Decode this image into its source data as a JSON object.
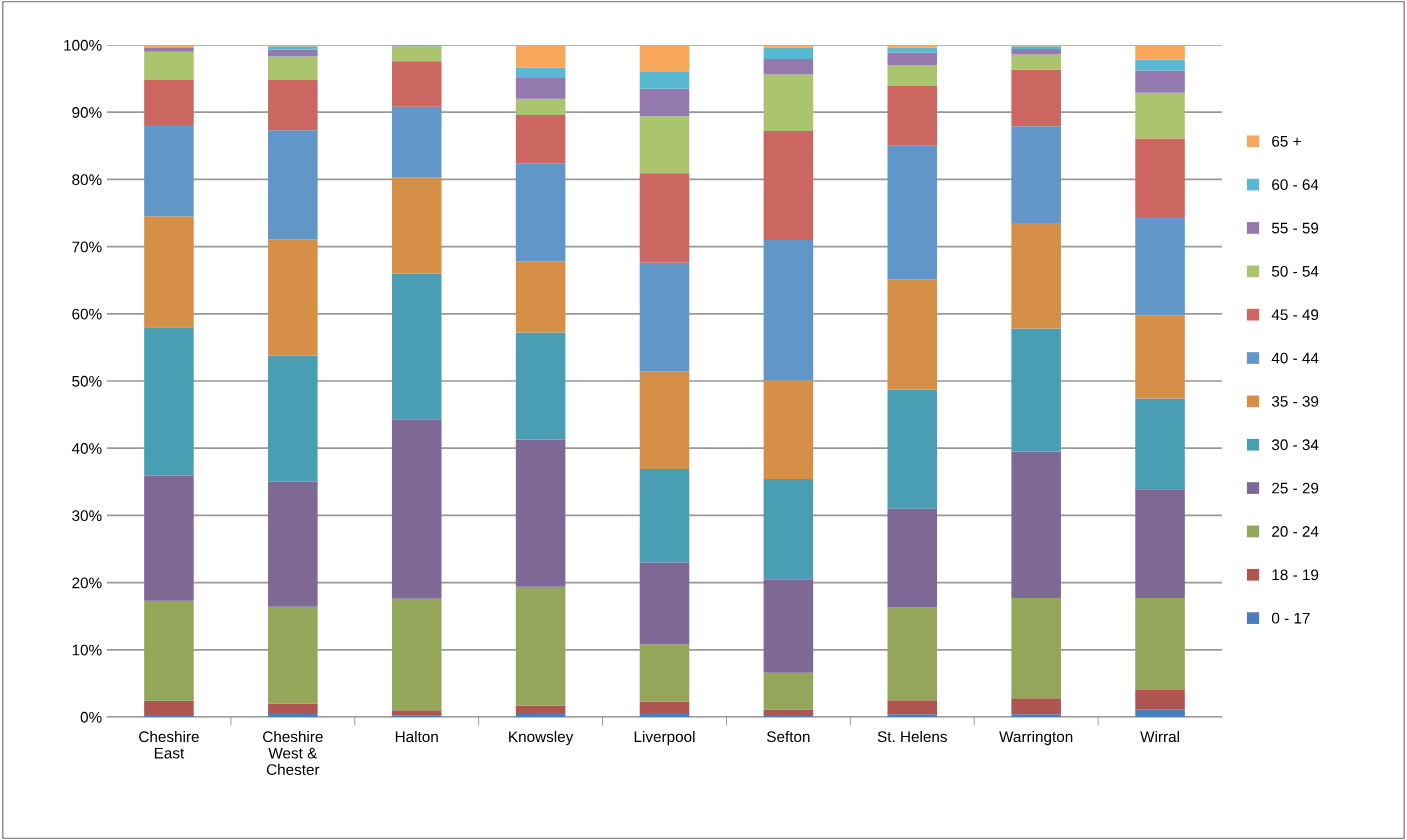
{
  "chart_data": {
    "type": "bar",
    "stacked": true,
    "categories": [
      "Cheshire\nEast",
      "Cheshire\nWest &\nChester",
      "Halton",
      "Knowsley",
      "Liverpool",
      "Sefton",
      "St. Helens",
      "Warrington",
      "Wirral"
    ],
    "ylim": [
      0,
      100
    ],
    "yticks": [
      {
        "value": 0,
        "label": "0%"
      },
      {
        "value": 10,
        "label": "10%"
      },
      {
        "value": 20,
        "label": "20%"
      },
      {
        "value": 30,
        "label": "30%"
      },
      {
        "value": 40,
        "label": "40%"
      },
      {
        "value": 50,
        "label": "50%"
      },
      {
        "value": 60,
        "label": "60%"
      },
      {
        "value": 70,
        "label": "70%"
      },
      {
        "value": 80,
        "label": "80%"
      },
      {
        "value": 90,
        "label": "90%"
      },
      {
        "value": 100,
        "label": "100%"
      }
    ],
    "grid": "y",
    "legend": "right",
    "series": [
      {
        "name": "0 - 17",
        "color": "#4a7ebb",
        "values": [
          0.3,
          0.6,
          0.2,
          0.6,
          0.6,
          0.3,
          0.4,
          0.4,
          1.1
        ]
      },
      {
        "name": "18 - 19",
        "color": "#ae5550",
        "values": [
          2.1,
          1.4,
          0.8,
          1.1,
          1.7,
          0.8,
          2.1,
          2.4,
          2.9
        ]
      },
      {
        "name": "20 - 24",
        "color": "#93a65a",
        "values": [
          14.9,
          14.4,
          16.6,
          17.7,
          8.5,
          5.5,
          13.8,
          14.9,
          13.7
        ]
      },
      {
        "name": "25 - 29",
        "color": "#7e6896",
        "values": [
          18.6,
          18.6,
          26.7,
          21.9,
          12.2,
          13.9,
          14.7,
          21.8,
          16.2
        ]
      },
      {
        "name": "30 - 34",
        "color": "#4a9eb4",
        "values": [
          22.1,
          18.8,
          21.7,
          15.9,
          13.9,
          14.9,
          17.7,
          18.3,
          13.5
        ]
      },
      {
        "name": "35 - 39",
        "color": "#d68f47",
        "values": [
          16.5,
          17.3,
          14.3,
          10.6,
          14.5,
          14.7,
          16.4,
          15.7,
          12.4
        ]
      },
      {
        "name": "40 - 44",
        "color": "#6096c8",
        "values": [
          13.6,
          16.2,
          10.5,
          14.6,
          16.2,
          20.9,
          19.9,
          14.4,
          14.6
        ]
      },
      {
        "name": "45 - 49",
        "color": "#cc6660",
        "values": [
          6.7,
          7.5,
          6.8,
          7.2,
          13.3,
          16.2,
          8.9,
          8.4,
          11.7
        ]
      },
      {
        "name": "50 - 54",
        "color": "#abc46e",
        "values": [
          4.2,
          3.5,
          2.2,
          2.4,
          8.5,
          8.4,
          3.1,
          2.3,
          6.8
        ]
      },
      {
        "name": "55 - 59",
        "color": "#9479af",
        "values": [
          0.6,
          1.0,
          null,
          3.1,
          4.1,
          2.3,
          1.9,
          0.8,
          3.3
        ]
      },
      {
        "name": "60 - 64",
        "color": "#5ab9d2",
        "values": [
          0.1,
          0.5,
          0.2,
          1.5,
          2.6,
          1.7,
          0.7,
          0.4,
          1.6
        ]
      },
      {
        "name": "65 +",
        "color": "#f9a65a",
        "values": [
          0.3,
          0.2,
          null,
          3.4,
          3.9,
          0.4,
          0.4,
          0.2,
          2.2
        ]
      }
    ]
  }
}
